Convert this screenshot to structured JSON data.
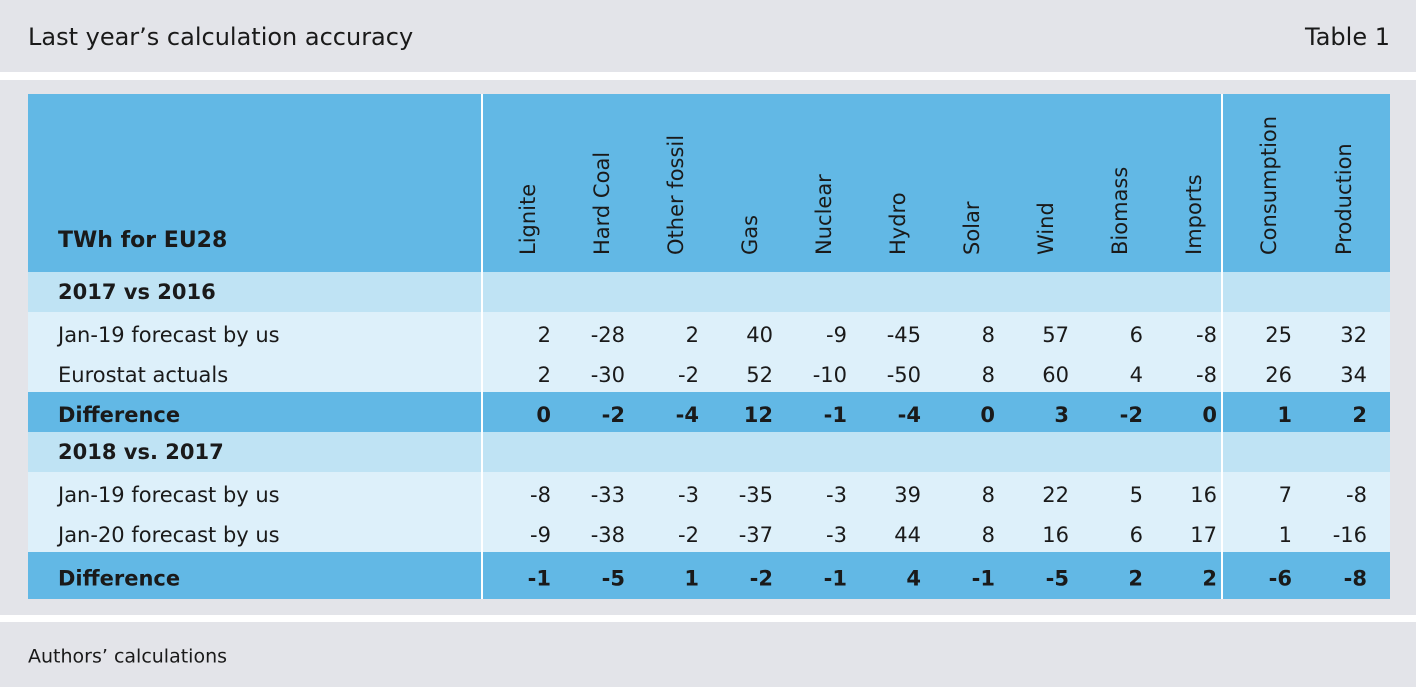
{
  "header": {
    "title": "Last year’s calculation accuracy",
    "label": "Table 1"
  },
  "table": {
    "corner": "TWh for EU28",
    "columns": [
      "Lignite",
      "Hard Coal",
      "Other fossil",
      "Gas",
      "Nuclear",
      "Hydro",
      "Solar",
      "Wind",
      "Biomass",
      "Imports",
      "Consumption",
      "Production"
    ],
    "sections": [
      {
        "title": "2017 vs 2016",
        "rows": [
          {
            "label": "Jan-19 forecast by us",
            "values": [
              2,
              -28,
              2,
              40,
              -9,
              -45,
              8,
              57,
              6,
              -8,
              25,
              32
            ]
          },
          {
            "label": "Eurostat actuals",
            "values": [
              2,
              -30,
              -2,
              52,
              -10,
              -50,
              8,
              60,
              4,
              -8,
              26,
              34
            ]
          }
        ],
        "difference": {
          "label": "Difference",
          "values": [
            0,
            -2,
            -4,
            12,
            -1,
            -4,
            0,
            3,
            -2,
            0,
            1,
            2
          ]
        }
      },
      {
        "title": "2018 vs. 2017",
        "rows": [
          {
            "label": "Jan-19 forecast by us",
            "values": [
              -8,
              -33,
              -3,
              -35,
              -3,
              39,
              8,
              22,
              5,
              16,
              7,
              -8
            ]
          },
          {
            "label": "Jan-20 forecast by us",
            "values": [
              -9,
              -38,
              -2,
              -37,
              -3,
              44,
              8,
              16,
              6,
              17,
              1,
              -16
            ]
          }
        ],
        "difference": {
          "label": "Difference",
          "values": [
            -1,
            -5,
            1,
            -2,
            -1,
            4,
            -1,
            -5,
            2,
            2,
            -6,
            -8
          ]
        }
      }
    ]
  },
  "footer": {
    "source": "Authors’ calculations"
  }
}
